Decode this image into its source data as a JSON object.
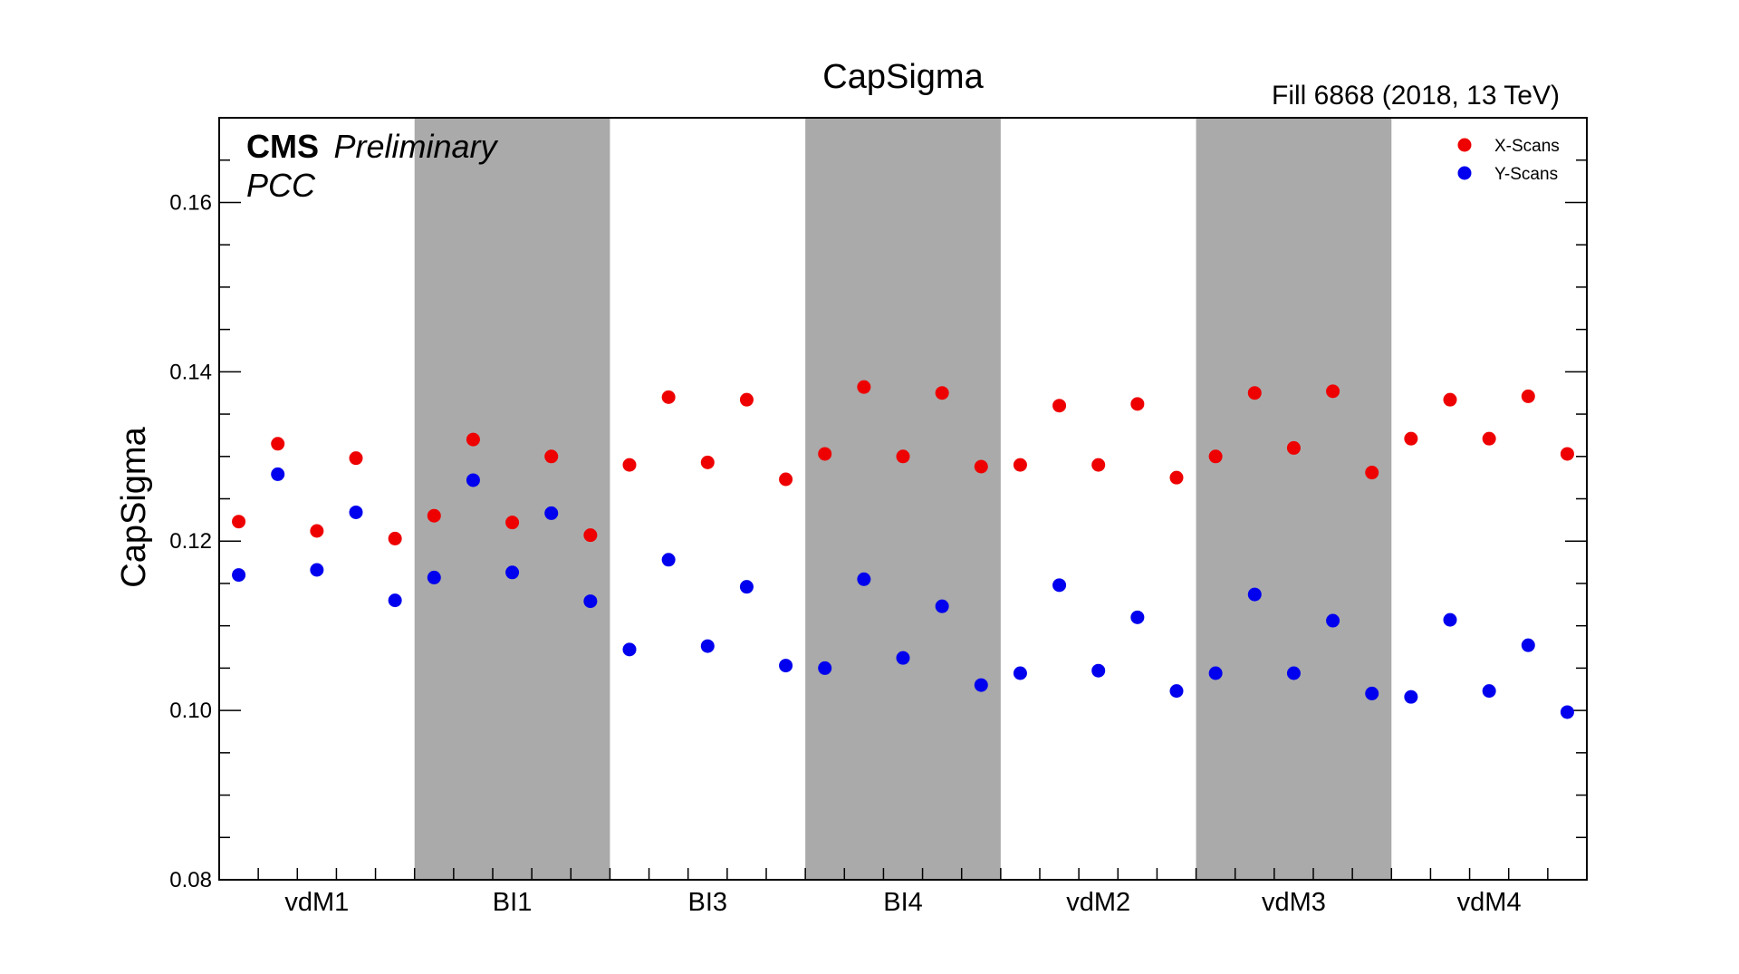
{
  "chart_data": {
    "type": "scatter",
    "title": "CapSigma",
    "annotation_right": "Fill 6868 (2018, 13 TeV)",
    "experiment_label": "CMS",
    "status_label": "Preliminary",
    "detector_label": "PCC",
    "ylabel": "CapSigma",
    "xlabel": "",
    "ylim": [
      0.08,
      0.17
    ],
    "yticks": [
      "0.08",
      "0.10",
      "0.12",
      "0.14",
      "0.16"
    ],
    "legend_position": "top-right",
    "grid": false,
    "x_range": [
      0,
      35
    ],
    "groups": [
      {
        "label": "vdM1",
        "shaded": false
      },
      {
        "label": "BI1",
        "shaded": true
      },
      {
        "label": "BI3",
        "shaded": false
      },
      {
        "label": "BI4",
        "shaded": true
      },
      {
        "label": "vdM2",
        "shaded": false
      },
      {
        "label": "vdM3",
        "shaded": true
      },
      {
        "label": "vdM4",
        "shaded": false
      }
    ],
    "group_size": 5,
    "series": [
      {
        "name": "X-Scans",
        "color": "#ee0000",
        "values": [
          0.1223,
          0.1315,
          0.1212,
          0.1298,
          0.1203,
          0.123,
          0.132,
          0.1222,
          0.13,
          0.1207,
          0.129,
          0.137,
          0.1293,
          0.1367,
          0.1273,
          0.1303,
          0.1382,
          0.13,
          0.1375,
          0.1288,
          0.129,
          0.136,
          0.129,
          0.1362,
          0.1275,
          0.13,
          0.1375,
          0.131,
          0.1377,
          0.1281,
          0.1321,
          0.1367,
          0.1321,
          0.1371,
          0.1303
        ]
      },
      {
        "name": "Y-Scans",
        "color": "#0000ee",
        "values": [
          0.116,
          0.1279,
          0.1166,
          0.1234,
          0.113,
          0.1157,
          0.1272,
          0.1163,
          0.1233,
          0.1129,
          0.1072,
          0.1178,
          0.1076,
          0.1146,
          0.1053,
          0.105,
          0.1155,
          0.1062,
          0.1123,
          0.103,
          0.1044,
          0.1148,
          0.1047,
          0.111,
          0.1023,
          0.1044,
          0.1137,
          0.1044,
          0.1106,
          0.102,
          0.1016,
          0.1107,
          0.1023,
          0.1077,
          0.0998
        ]
      }
    ]
  }
}
